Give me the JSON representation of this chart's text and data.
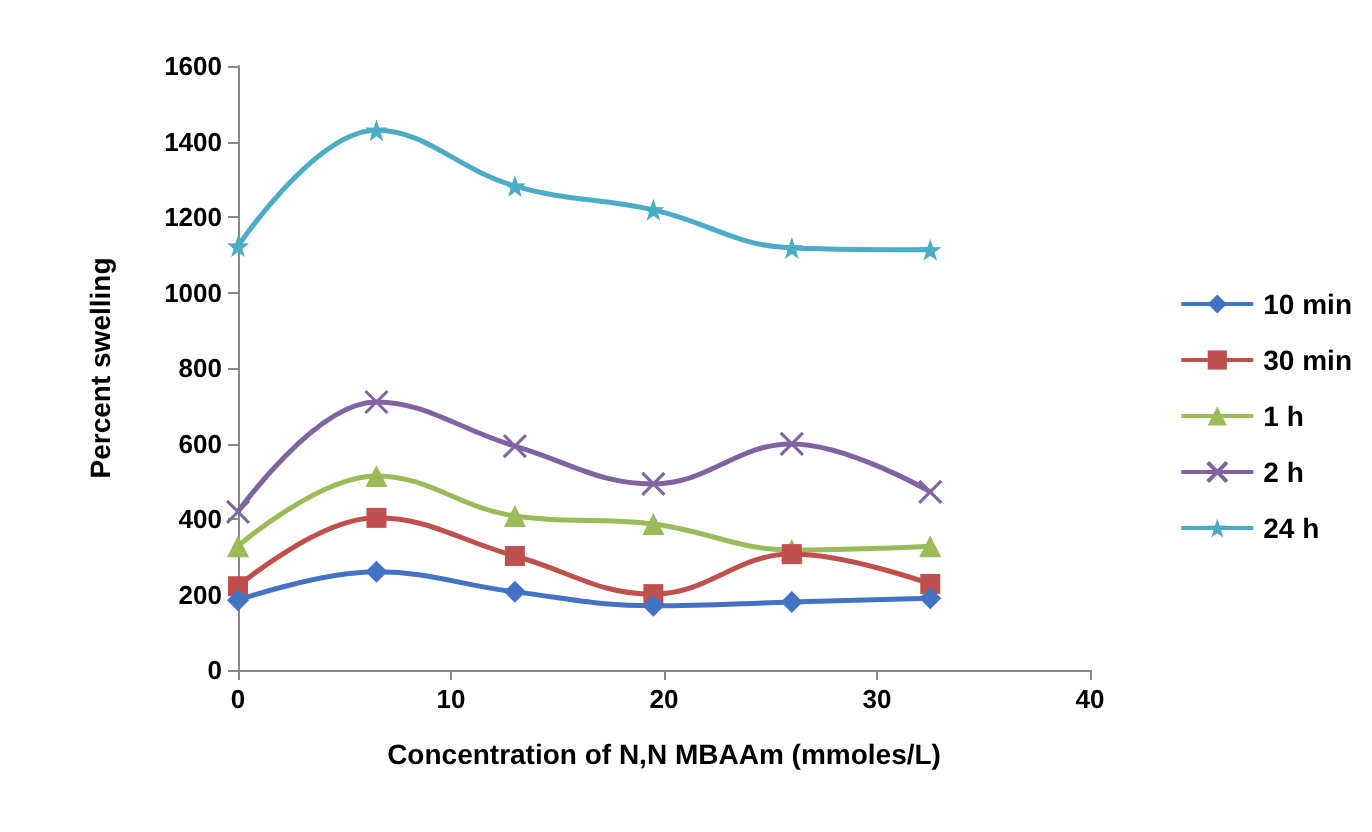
{
  "chart_data": {
    "type": "line",
    "xlabel": "Concentration of N,N MBAAm (mmoles/L)",
    "ylabel": "Percent swelling",
    "x": [
      0,
      6.5,
      13,
      19.5,
      26,
      32.5
    ],
    "series": [
      {
        "name": "10 min",
        "color": "#4472c4",
        "marker": "diamond",
        "values": [
          185,
          260,
          207,
          170,
          180,
          190
        ]
      },
      {
        "name": "30 min",
        "color": "#c0504d",
        "marker": "square",
        "values": [
          222,
          403,
          302,
          201,
          307,
          228
        ]
      },
      {
        "name": "1 h",
        "color": "#9bbb59",
        "marker": "triangle",
        "values": [
          328,
          514,
          408,
          387,
          318,
          328
        ]
      },
      {
        "name": "2 h",
        "color": "#8064a2",
        "marker": "cross",
        "values": [
          419,
          710,
          593,
          493,
          599,
          472
        ]
      },
      {
        "name": "24 h",
        "color": "#4bacc6",
        "marker": "star",
        "values": [
          1123,
          1430,
          1282,
          1219,
          1118,
          1113
        ]
      }
    ],
    "xlim": [
      0,
      40
    ],
    "xticks": [
      0,
      10,
      20,
      30,
      40
    ],
    "ylim": [
      0,
      1600
    ],
    "yticks": [
      0,
      200,
      400,
      600,
      800,
      1000,
      1200,
      1400,
      1600
    ],
    "grid": false,
    "legend": "right",
    "line_style": "solid"
  }
}
